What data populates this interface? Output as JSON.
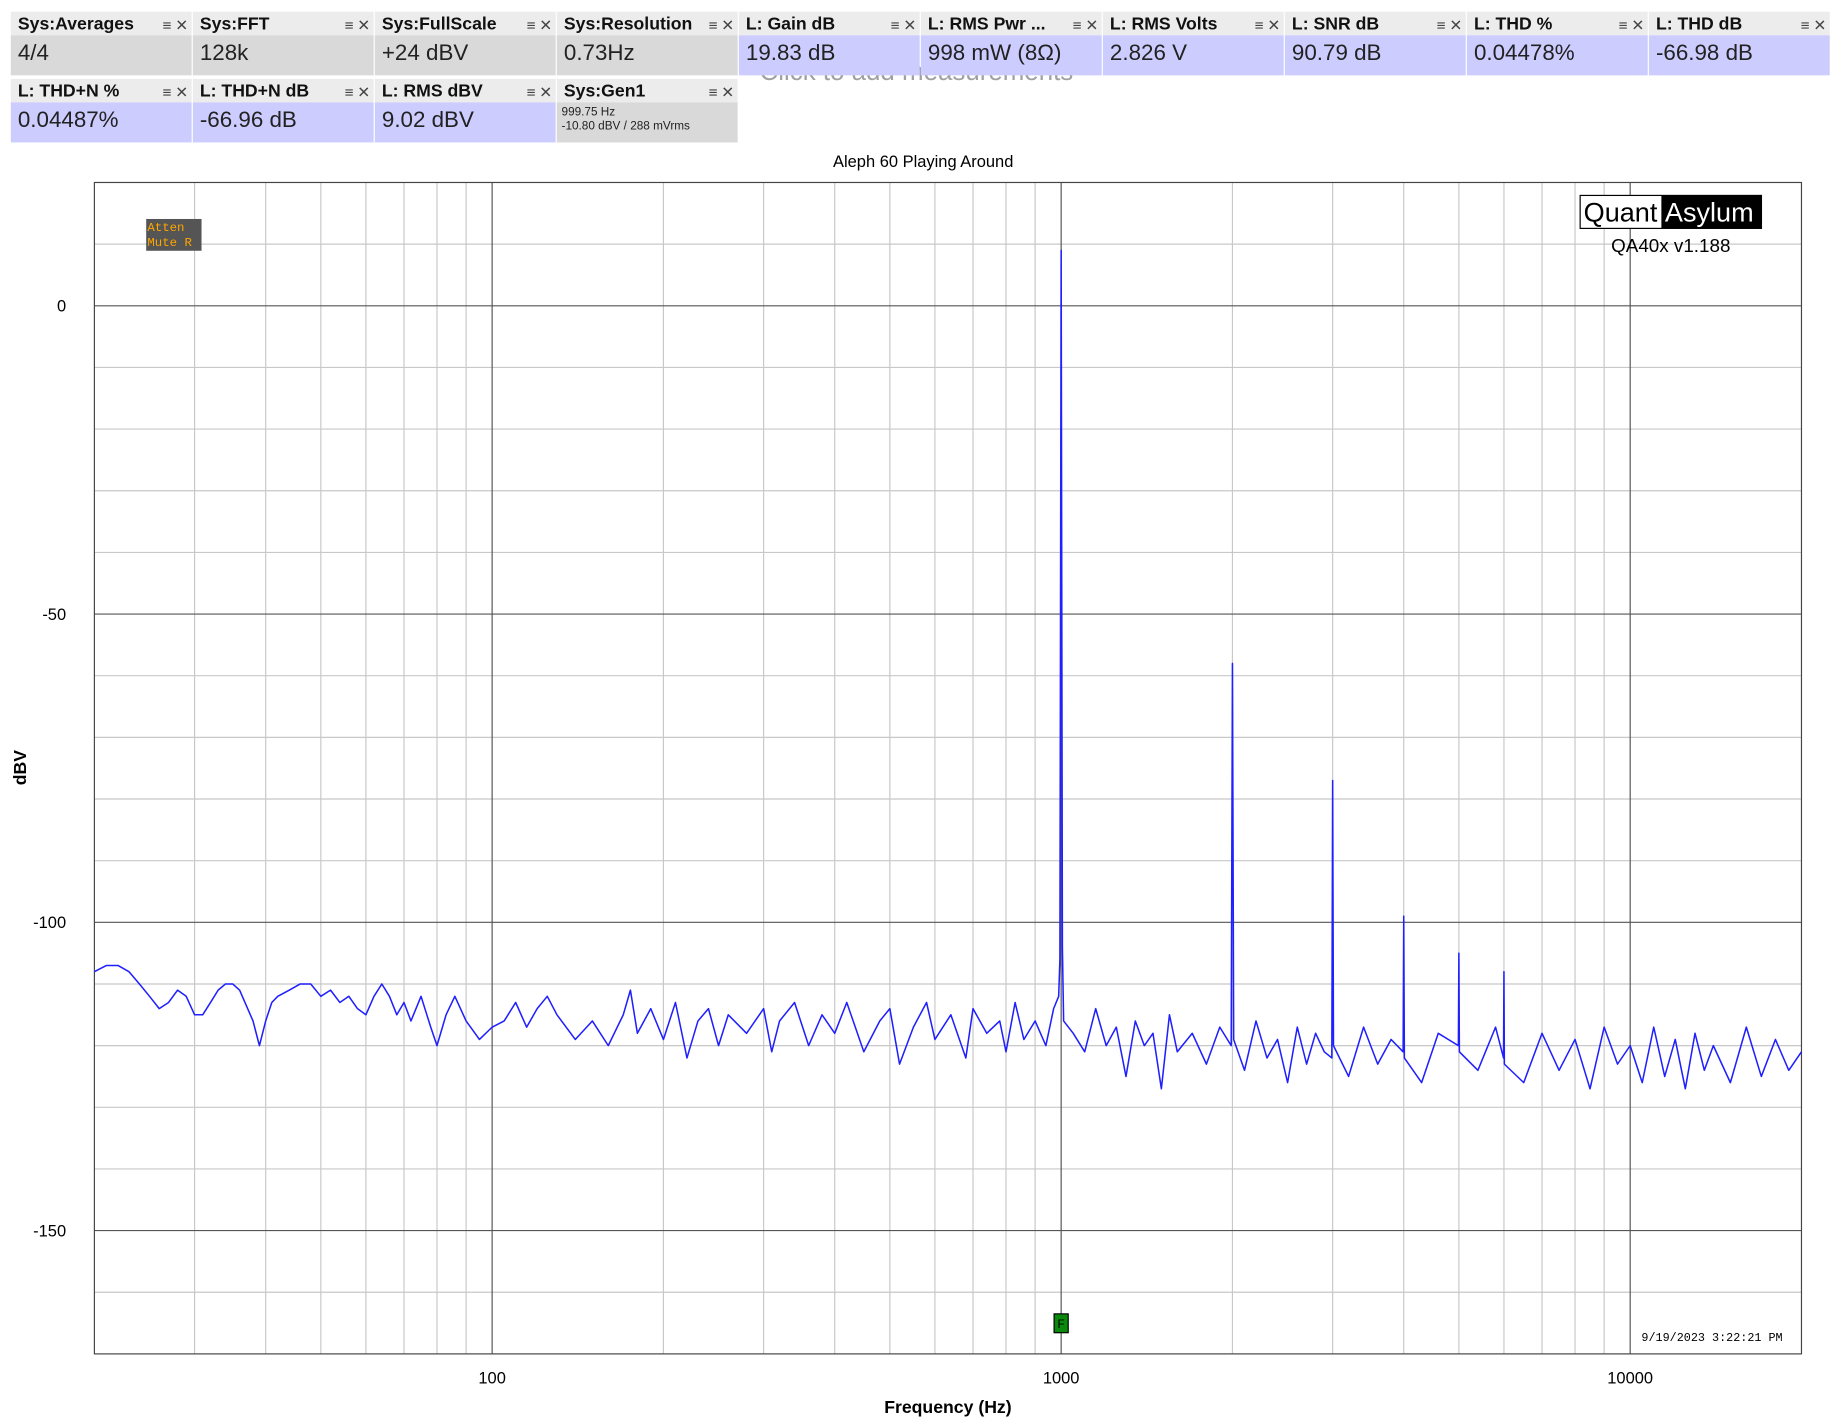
{
  "tiles": [
    {
      "title": "Sys:Averages",
      "value": "4/4",
      "bg": "#d9d9d9"
    },
    {
      "title": "Sys:FFT",
      "value": "128k",
      "bg": "#d9d9d9"
    },
    {
      "title": "Sys:FullScale",
      "value": "+24 dBV",
      "bg": "#d9d9d9"
    },
    {
      "title": "Sys:Resolution",
      "value": "0.73Hz",
      "bg": "#d9d9d9"
    },
    {
      "title": "L: Gain dB",
      "value": "19.83 dB",
      "bg": "#ccccff"
    },
    {
      "title": "L: RMS Pwr ...",
      "value": "998 mW (8Ω)",
      "bg": "#ccccff"
    },
    {
      "title": "L: RMS Volts",
      "value": "2.826 V",
      "bg": "#ccccff"
    },
    {
      "title": "L: SNR dB",
      "value": "90.79 dB",
      "bg": "#ccccff"
    },
    {
      "title": "L: THD %",
      "value": "0.04478%",
      "bg": "#ccccff"
    },
    {
      "title": "L: THD dB",
      "value": "-66.98 dB",
      "bg": "#ccccff"
    },
    {
      "title": "L: THD+N %",
      "value": "0.04487%",
      "bg": "#ccccff"
    },
    {
      "title": "L: THD+N dB",
      "value": "-66.96 dB",
      "bg": "#ccccff"
    },
    {
      "title": "L: RMS dBV",
      "value": "9.02 dBV",
      "bg": "#ccccff"
    },
    {
      "title": "Sys:Gen1",
      "lines": [
        "999.75 Hz",
        "-10.80 dBV  / 288 mVrms"
      ],
      "bg": "#d9d9d9"
    }
  ],
  "add_hint": "Click to add measurements",
  "chart_data": {
    "type": "line",
    "title": "Aleph 60 Playing Around",
    "x_label": "Frequency (Hz)",
    "y_label": "dBV",
    "xscale": "log",
    "xlim": [
      20,
      20000
    ],
    "ylim": [
      -170,
      20
    ],
    "xticks": [
      100,
      1000,
      10000
    ],
    "yticks": [
      0,
      -50,
      -100,
      -150
    ],
    "x_minor_ticks": [
      30,
      40,
      50,
      60,
      70,
      80,
      90,
      200,
      300,
      400,
      500,
      600,
      700,
      800,
      900,
      2000,
      3000,
      4000,
      5000,
      6000,
      7000,
      8000,
      9000
    ],
    "y_minor_ticks": [
      10,
      -10,
      -20,
      -30,
      -40,
      -60,
      -70,
      -80,
      -90,
      -110,
      -120,
      -130,
      -140,
      -160
    ],
    "grid": true,
    "badge": [
      "Atten",
      "Mute R"
    ],
    "logo": [
      "Quant",
      "Asylum"
    ],
    "version": "QA40x v1.188",
    "timestamp": "9/19/2023 3:22:21 PM",
    "marker": {
      "label": "F",
      "x": 1000
    },
    "series": [
      {
        "name": "L",
        "color": "#1f1fff",
        "x": [
          20,
          21,
          22,
          23,
          24,
          25,
          26,
          27,
          28,
          29,
          30,
          31,
          32,
          33,
          34,
          35,
          36,
          38,
          39,
          40,
          41,
          42,
          44,
          46,
          48,
          50,
          52,
          54,
          56,
          58,
          60,
          62,
          64,
          66,
          68,
          70,
          72,
          75,
          78,
          80,
          83,
          86,
          90,
          95,
          100,
          105,
          110,
          115,
          120,
          125,
          130,
          140,
          150,
          160,
          170,
          175,
          180,
          190,
          200,
          210,
          220,
          230,
          240,
          250,
          260,
          280,
          300,
          310,
          320,
          340,
          360,
          380,
          400,
          420,
          450,
          480,
          500,
          520,
          550,
          580,
          600,
          640,
          680,
          700,
          740,
          780,
          800,
          830,
          860,
          900,
          940,
          970,
          990,
          995,
          1000,
          1005,
          1010,
          1050,
          1100,
          1150,
          1200,
          1250,
          1300,
          1350,
          1400,
          1450,
          1500,
          1550,
          1600,
          1700,
          1800,
          1900,
          1990,
          2000,
          2010,
          2100,
          2200,
          2300,
          2400,
          2500,
          2600,
          2700,
          2800,
          2900,
          2990,
          3000,
          3010,
          3200,
          3400,
          3600,
          3800,
          3990,
          4000,
          4010,
          4300,
          4600,
          4990,
          5000,
          5010,
          5400,
          5800,
          5990,
          6000,
          6010,
          6500,
          7000,
          7500,
          8000,
          8500,
          9000,
          9500,
          10000,
          10500,
          11000,
          11500,
          12000,
          12500,
          13000,
          13500,
          14000,
          15000,
          16000,
          17000,
          18000,
          19000,
          20000
        ],
        "values": [
          -108,
          -107,
          -107,
          -108,
          -110,
          -112,
          -114,
          -113,
          -111,
          -112,
          -115,
          -115,
          -113,
          -111,
          -110,
          -110,
          -111,
          -116,
          -120,
          -116,
          -113,
          -112,
          -111,
          -110,
          -110,
          -112,
          -111,
          -113,
          -112,
          -114,
          -115,
          -112,
          -110,
          -112,
          -115,
          -113,
          -116,
          -112,
          -117,
          -120,
          -115,
          -112,
          -116,
          -119,
          -117,
          -116,
          -113,
          -117,
          -114,
          -112,
          -115,
          -119,
          -116,
          -120,
          -115,
          -111,
          -118,
          -114,
          -119,
          -113,
          -122,
          -116,
          -114,
          -120,
          -115,
          -118,
          -114,
          -121,
          -116,
          -113,
          -120,
          -115,
          -118,
          -113,
          -121,
          -116,
          -114,
          -123,
          -117,
          -113,
          -119,
          -115,
          -122,
          -114,
          -118,
          -116,
          -121,
          -113,
          -119,
          -116,
          -120,
          -114,
          -112,
          -106,
          9,
          -104,
          -116,
          -118,
          -121,
          -114,
          -120,
          -117,
          -125,
          -116,
          -120,
          -118,
          -127,
          -115,
          -121,
          -118,
          -123,
          -117,
          -120,
          -58,
          -119,
          -124,
          -116,
          -122,
          -119,
          -126,
          -117,
          -123,
          -118,
          -121,
          -122,
          -77,
          -120,
          -125,
          -117,
          -123,
          -119,
          -121,
          -99,
          -122,
          -126,
          -118,
          -120,
          -105,
          -121,
          -124,
          -117,
          -122,
          -108,
          -123,
          -126,
          -118,
          -124,
          -119,
          -127,
          -117,
          -123,
          -120,
          -126,
          -117,
          -125,
          -119,
          -127,
          -118,
          -124,
          -120,
          -126,
          -117,
          -125,
          -119,
          -124,
          -121
        ]
      }
    ]
  }
}
